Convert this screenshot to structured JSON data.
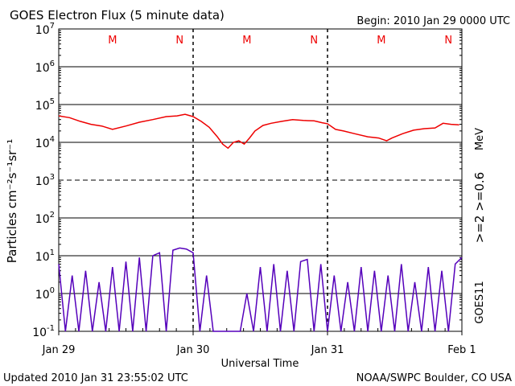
{
  "chart_data": {
    "type": "line",
    "title": "GOES Electron Flux (5 minute data)",
    "begin_label": "Begin: 2010 Jan 29 0000 UTC",
    "xlabel": "Universal Time",
    "ylabel": "Particles cm⁻²s⁻¹sr⁻¹",
    "yscale": "log",
    "ylim_exponent": [
      -1,
      7
    ],
    "y_ticks": [
      {
        "base": "10",
        "exp": "7"
      },
      {
        "base": "10",
        "exp": "6"
      },
      {
        "base": "10",
        "exp": "5"
      },
      {
        "base": "10",
        "exp": "4"
      },
      {
        "base": "10",
        "exp": "3"
      },
      {
        "base": "10",
        "exp": "2"
      },
      {
        "base": "10",
        "exp": "1"
      },
      {
        "base": "10",
        "exp": "0"
      },
      {
        "base": "10",
        "exp": "-1"
      }
    ],
    "xlim_days": [
      0,
      3
    ],
    "x_ticks": [
      {
        "day": 0,
        "label": "Jan 29"
      },
      {
        "day": 1,
        "label": "Jan 30"
      },
      {
        "day": 2,
        "label": "Jan 31"
      },
      {
        "day": 3,
        "label": "Feb 1"
      }
    ],
    "reference_lines": [
      {
        "exp": 6,
        "style": "solid"
      },
      {
        "exp": 5,
        "style": "solid"
      },
      {
        "exp": 4,
        "style": "solid"
      },
      {
        "exp": 3,
        "style": "dashed"
      },
      {
        "exp": 2,
        "style": "solid"
      },
      {
        "exp": 1,
        "style": "solid"
      },
      {
        "exp": 0,
        "style": "solid"
      }
    ],
    "mn_markers": [
      {
        "day": 0.4,
        "label": "M"
      },
      {
        "day": 0.9,
        "label": "N"
      },
      {
        "day": 1.4,
        "label": "M"
      },
      {
        "day": 1.9,
        "label": "N"
      },
      {
        "day": 2.4,
        "label": "M"
      },
      {
        "day": 2.9,
        "label": "N"
      }
    ],
    "series": [
      {
        "name": ">=0.6 MeV",
        "color": "#ee0000",
        "x_day": [
          0.0,
          0.08,
          0.16,
          0.24,
          0.32,
          0.4,
          0.5,
          0.6,
          0.7,
          0.8,
          0.88,
          0.94,
          1.0,
          1.06,
          1.12,
          1.18,
          1.22,
          1.26,
          1.3,
          1.34,
          1.38,
          1.42,
          1.46,
          1.52,
          1.58,
          1.66,
          1.74,
          1.82,
          1.9,
          1.96,
          2.0,
          2.06,
          2.12,
          2.2,
          2.3,
          2.38,
          2.44,
          2.48,
          2.56,
          2.64,
          2.72,
          2.8,
          2.86,
          2.92,
          2.98
        ],
        "y": [
          50000,
          45000,
          36000,
          30000,
          27000,
          22000,
          27000,
          34000,
          40000,
          48000,
          50000,
          55000,
          48000,
          36000,
          25000,
          14000,
          9000,
          7000,
          10000,
          11000,
          9000,
          13000,
          20000,
          28000,
          32000,
          36000,
          40000,
          38000,
          37000,
          33000,
          31000,
          22000,
          20000,
          17000,
          14000,
          13000,
          11000,
          13000,
          17000,
          21000,
          23000,
          24000,
          32000,
          30000,
          29000
        ]
      },
      {
        "name": ">=2 MeV",
        "color": "#5500bb",
        "x_day": [
          0.0,
          0.05,
          0.1,
          0.15,
          0.2,
          0.25,
          0.3,
          0.35,
          0.4,
          0.45,
          0.5,
          0.55,
          0.6,
          0.65,
          0.7,
          0.75,
          0.8,
          0.85,
          0.9,
          0.95,
          1.0,
          1.05,
          1.1,
          1.15,
          1.2,
          1.25,
          1.3,
          1.35,
          1.4,
          1.45,
          1.5,
          1.55,
          1.6,
          1.65,
          1.7,
          1.75,
          1.8,
          1.85,
          1.9,
          1.95,
          2.0,
          2.05,
          2.1,
          2.15,
          2.2,
          2.25,
          2.3,
          2.35,
          2.4,
          2.45,
          2.5,
          2.55,
          2.6,
          2.65,
          2.7,
          2.75,
          2.8,
          2.85,
          2.9,
          2.95,
          3.0
        ],
        "y": [
          6,
          0.1,
          3,
          0.1,
          4,
          0.1,
          2,
          0.1,
          5,
          0.1,
          7,
          0.1,
          9,
          0.1,
          10,
          12,
          0.1,
          14,
          16,
          15,
          12,
          0.1,
          3,
          0.1,
          0.1,
          0.1,
          0.1,
          0.1,
          1,
          0.1,
          5,
          0.1,
          6,
          0.1,
          4,
          0.1,
          7,
          8,
          0.1,
          6,
          0.1,
          3,
          0.1,
          2,
          0.1,
          5,
          0.1,
          4,
          0.1,
          3,
          0.1,
          6,
          0.1,
          2,
          0.1,
          5,
          0.1,
          4,
          0.1,
          6,
          9
        ]
      }
    ],
    "right_labels": {
      "mev": "MeV",
      "series_range": ">=2 >=0.6",
      "satellite": "GOES11"
    }
  },
  "footer": {
    "updated": "Updated 2010 Jan 31 23:55:02 UTC",
    "source": "NOAA/SWPC Boulder, CO USA"
  },
  "colors": {
    "red": "#ee0000",
    "purple": "#5500bb",
    "series_range_label": "#cc2255"
  }
}
